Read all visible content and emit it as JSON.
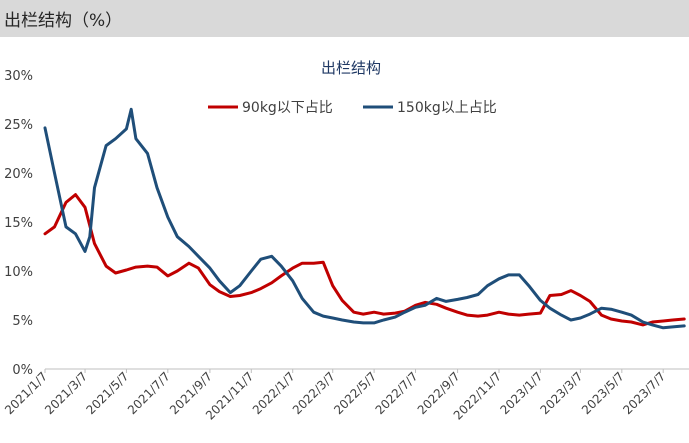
{
  "header": {
    "title": "出栏结构（%）"
  },
  "colors": {
    "series_90": "#c00000",
    "series_150": "#1f4e79",
    "axis_text": "#404040",
    "header_bg": "#d9d9d9"
  },
  "chart_data": {
    "type": "line",
    "title": "出栏结构",
    "xlabel": "",
    "ylabel": "",
    "ylim": [
      0,
      30
    ],
    "y_unit": "%",
    "y_ticks": [
      "0%",
      "5%",
      "10%",
      "15%",
      "20%",
      "25%",
      "30%"
    ],
    "grid": false,
    "legend_position": "top-center",
    "x_ticks": [
      "2021/1/7",
      "2021/3/7",
      "2021/5/7",
      "2021/7/7",
      "2021/9/7",
      "2021/11/7",
      "2022/1/7",
      "2022/3/7",
      "2022/5/7",
      "2022/7/7",
      "2022/9/7",
      "2022/11/7",
      "2023/1/7",
      "2023/3/7",
      "2023/5/7",
      "2023/7/7"
    ],
    "series": [
      {
        "name": "90kg以下占比",
        "color": "#c00000",
        "points": [
          [
            "2021-01-07",
            13.8
          ],
          [
            "2021-01-21",
            14.5
          ],
          [
            "2021-02-07",
            17.0
          ],
          [
            "2021-02-21",
            17.8
          ],
          [
            "2021-03-07",
            16.5
          ],
          [
            "2021-03-21",
            12.8
          ],
          [
            "2021-04-07",
            10.5
          ],
          [
            "2021-04-21",
            9.8
          ],
          [
            "2021-05-07",
            10.1
          ],
          [
            "2021-05-21",
            10.4
          ],
          [
            "2021-06-07",
            10.5
          ],
          [
            "2021-06-21",
            10.4
          ],
          [
            "2021-07-07",
            9.5
          ],
          [
            "2021-07-21",
            10.0
          ],
          [
            "2021-08-07",
            10.8
          ],
          [
            "2021-08-21",
            10.3
          ],
          [
            "2021-09-07",
            8.6
          ],
          [
            "2021-09-21",
            7.9
          ],
          [
            "2021-10-07",
            7.4
          ],
          [
            "2021-10-21",
            7.5
          ],
          [
            "2021-11-07",
            7.8
          ],
          [
            "2021-11-21",
            8.2
          ],
          [
            "2021-12-07",
            8.8
          ],
          [
            "2021-12-21",
            9.5
          ],
          [
            "2022-01-07",
            10.3
          ],
          [
            "2022-01-21",
            10.8
          ],
          [
            "2022-02-07",
            10.8
          ],
          [
            "2022-02-21",
            10.9
          ],
          [
            "2022-03-07",
            8.5
          ],
          [
            "2022-03-21",
            7.0
          ],
          [
            "2022-04-07",
            5.8
          ],
          [
            "2022-04-21",
            5.6
          ],
          [
            "2022-05-07",
            5.8
          ],
          [
            "2022-05-21",
            5.6
          ],
          [
            "2022-06-07",
            5.7
          ],
          [
            "2022-06-21",
            5.9
          ],
          [
            "2022-07-07",
            6.5
          ],
          [
            "2022-07-21",
            6.8
          ],
          [
            "2022-08-07",
            6.6
          ],
          [
            "2022-08-21",
            6.2
          ],
          [
            "2022-09-07",
            5.8
          ],
          [
            "2022-09-21",
            5.5
          ],
          [
            "2022-10-07",
            5.4
          ],
          [
            "2022-10-21",
            5.5
          ],
          [
            "2022-11-07",
            5.8
          ],
          [
            "2022-11-21",
            5.6
          ],
          [
            "2022-12-07",
            5.5
          ],
          [
            "2022-12-21",
            5.6
          ],
          [
            "2023-01-07",
            5.7
          ],
          [
            "2023-01-21",
            7.5
          ],
          [
            "2023-02-07",
            7.6
          ],
          [
            "2023-02-21",
            8.0
          ],
          [
            "2023-03-07",
            7.5
          ],
          [
            "2023-03-21",
            6.9
          ],
          [
            "2023-04-07",
            5.5
          ],
          [
            "2023-04-21",
            5.1
          ],
          [
            "2023-05-07",
            4.9
          ],
          [
            "2023-05-21",
            4.8
          ],
          [
            "2023-06-07",
            4.5
          ],
          [
            "2023-06-21",
            4.8
          ],
          [
            "2023-07-07",
            4.9
          ],
          [
            "2023-07-21",
            5.0
          ],
          [
            "2023-08-07",
            5.1
          ]
        ]
      },
      {
        "name": "150kg以上占比",
        "color": "#1f4e79",
        "points": [
          [
            "2021-01-07",
            24.6
          ],
          [
            "2021-01-21",
            20.0
          ],
          [
            "2021-02-07",
            14.5
          ],
          [
            "2021-02-21",
            13.8
          ],
          [
            "2021-03-07",
            12.0
          ],
          [
            "2021-03-14",
            13.5
          ],
          [
            "2021-03-21",
            18.5
          ],
          [
            "2021-04-07",
            22.8
          ],
          [
            "2021-04-21",
            23.5
          ],
          [
            "2021-05-07",
            24.5
          ],
          [
            "2021-05-14",
            26.5
          ],
          [
            "2021-05-21",
            23.5
          ],
          [
            "2021-06-07",
            22.0
          ],
          [
            "2021-06-21",
            18.5
          ],
          [
            "2021-07-07",
            15.5
          ],
          [
            "2021-07-21",
            13.5
          ],
          [
            "2021-08-07",
            12.5
          ],
          [
            "2021-08-21",
            11.5
          ],
          [
            "2021-09-07",
            10.3
          ],
          [
            "2021-09-21",
            9.0
          ],
          [
            "2021-10-07",
            7.8
          ],
          [
            "2021-10-21",
            8.5
          ],
          [
            "2021-11-07",
            10.0
          ],
          [
            "2021-11-21",
            11.2
          ],
          [
            "2021-12-07",
            11.5
          ],
          [
            "2021-12-21",
            10.5
          ],
          [
            "2022-01-07",
            9.0
          ],
          [
            "2022-01-21",
            7.2
          ],
          [
            "2022-02-07",
            5.8
          ],
          [
            "2022-02-21",
            5.4
          ],
          [
            "2022-03-07",
            5.2
          ],
          [
            "2022-03-21",
            5.0
          ],
          [
            "2022-04-07",
            4.8
          ],
          [
            "2022-04-21",
            4.7
          ],
          [
            "2022-05-07",
            4.7
          ],
          [
            "2022-05-21",
            5.0
          ],
          [
            "2022-06-07",
            5.3
          ],
          [
            "2022-06-21",
            5.8
          ],
          [
            "2022-07-07",
            6.3
          ],
          [
            "2022-07-21",
            6.5
          ],
          [
            "2022-08-07",
            7.2
          ],
          [
            "2022-08-21",
            6.9
          ],
          [
            "2022-09-07",
            7.1
          ],
          [
            "2022-09-21",
            7.3
          ],
          [
            "2022-10-07",
            7.6
          ],
          [
            "2022-10-21",
            8.5
          ],
          [
            "2022-11-07",
            9.2
          ],
          [
            "2022-11-21",
            9.6
          ],
          [
            "2022-12-07",
            9.6
          ],
          [
            "2022-12-21",
            8.5
          ],
          [
            "2023-01-07",
            7.0
          ],
          [
            "2023-01-21",
            6.2
          ],
          [
            "2023-02-07",
            5.5
          ],
          [
            "2023-02-21",
            5.0
          ],
          [
            "2023-03-07",
            5.2
          ],
          [
            "2023-03-21",
            5.6
          ],
          [
            "2023-04-07",
            6.2
          ],
          [
            "2023-04-21",
            6.1
          ],
          [
            "2023-05-07",
            5.8
          ],
          [
            "2023-05-21",
            5.5
          ],
          [
            "2023-06-07",
            4.8
          ],
          [
            "2023-06-21",
            4.5
          ],
          [
            "2023-07-07",
            4.2
          ],
          [
            "2023-07-21",
            4.3
          ],
          [
            "2023-08-07",
            4.4
          ]
        ]
      }
    ]
  }
}
